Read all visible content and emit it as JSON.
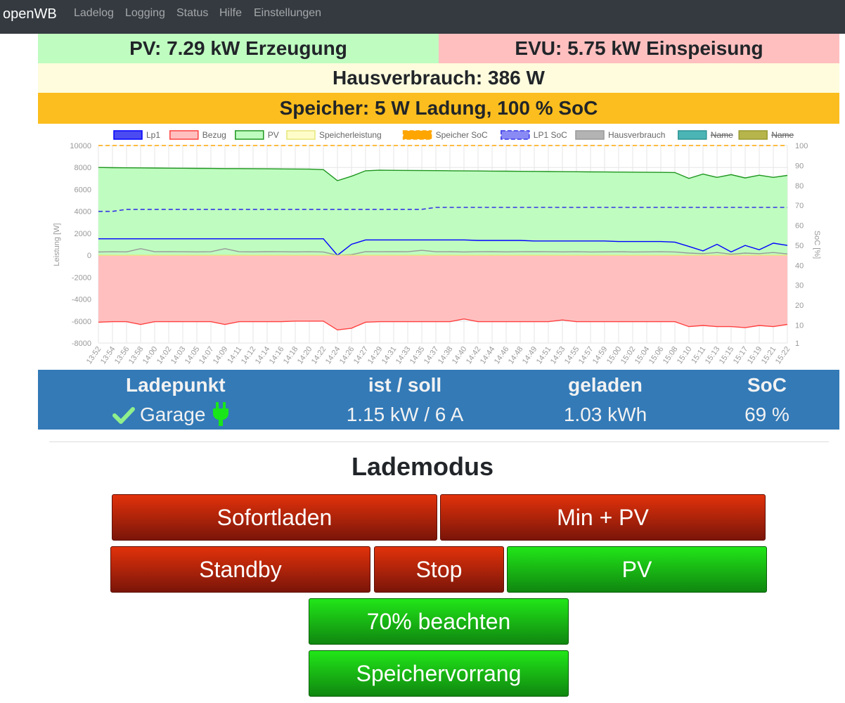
{
  "nav": {
    "brand": "openWB",
    "links": [
      "Ladelog",
      "Logging",
      "Status",
      "Hilfe",
      "Einstellungen"
    ]
  },
  "status": {
    "pv": "PV: 7.29 kW Erzeugung",
    "evu": "EVU: 5.75 kW Einspeisung",
    "haus": "Hausverbrauch: 386 W",
    "speicher": "Speicher: 5 W Ladung, 100 % SoC"
  },
  "colors": {
    "pv": "#bffcc0",
    "evu": "#ffbfbf",
    "haus": "#fefcdd",
    "speicher": "#fcbe1e",
    "ladepunkt_bg": "#337ab7",
    "ok_check": "#8ff08c",
    "plug": "#19e619"
  },
  "ladepunkt": {
    "headers": [
      "Ladepunkt",
      "ist / soll",
      "geladen",
      "SoC"
    ],
    "row": {
      "name": "Garage",
      "ist_soll": "1.15 kW / 6 A",
      "geladen": "1.03 kWh",
      "soc": "69 %"
    },
    "icons": [
      "check-icon",
      "plug-icon"
    ]
  },
  "lademodus": {
    "title": "Lademodus",
    "buttons": {
      "sofortladen": "Sofortladen",
      "minpv": "Min + PV",
      "standby": "Standby",
      "stop": "Stop",
      "pv": "PV",
      "beachten": "70% beachten",
      "speichervorrang": "Speichervorrang"
    },
    "active": [
      "PV",
      "70% beachten",
      "Speichervorrang"
    ]
  },
  "chart_data": {
    "type": "area",
    "legend": [
      {
        "name": "Lp1",
        "stroke": "#0000ff",
        "fill": "#4b4bf2"
      },
      {
        "name": "Bezug",
        "stroke": "#ff4040",
        "fill": "#ffbfbf"
      },
      {
        "name": "PV",
        "stroke": "#1e961e",
        "fill": "#bffcc0"
      },
      {
        "name": "Speicherleistung",
        "stroke": "#e6e67a",
        "fill": "#fefcc8"
      },
      {
        "name": "Speicher SoC",
        "stroke": "#ffa500",
        "fill": "#ffa500",
        "dashed": true
      },
      {
        "name": "LP1 SoC",
        "stroke": "#3535e6",
        "fill": "#8a8af5",
        "dashed": true
      },
      {
        "name": "Hausverbrauch",
        "stroke": "#999999",
        "fill": "#b3b3b3"
      },
      {
        "name": "Name",
        "stroke": "#2f9494",
        "fill": "#4bb5b5",
        "hidden": true
      },
      {
        "name": "Name",
        "stroke": "#999933",
        "fill": "#b5b54b",
        "hidden": true
      }
    ],
    "ylabel_left": "Leistung [W]",
    "ylabel_right": "SoC [%]",
    "y_left_range": [
      -8000,
      10000
    ],
    "y_left_ticks": [
      "10000",
      "8000",
      "6000",
      "4000",
      "2000",
      "0",
      "-2000",
      "-4000",
      "-6000",
      "-8000"
    ],
    "y_right_ticks": [
      "100",
      "90",
      "80",
      "70",
      "60",
      "50",
      "40",
      "30",
      "20",
      "10",
      "1"
    ],
    "x_ticks": [
      "13:52",
      "13:54",
      "13:56",
      "13:58",
      "14:00",
      "14:02",
      "14:03",
      "14:05",
      "14:07",
      "14:09",
      "14:11",
      "14:12",
      "14:14",
      "14:16",
      "14:18",
      "14:20",
      "14:22",
      "14:24",
      "14:26",
      "14:27",
      "14:29",
      "14:31",
      "14:33",
      "14:35",
      "14:37",
      "14:38",
      "14:40",
      "14:42",
      "14:44",
      "14:46",
      "14:48",
      "14:49",
      "14:51",
      "14:53",
      "14:55",
      "14:57",
      "14:59",
      "15:00",
      "15:02",
      "15:04",
      "15:06",
      "15:08",
      "15:10",
      "15:11",
      "15:13",
      "15:15",
      "15:17",
      "15:19",
      "15:21",
      "15:22"
    ],
    "series": [
      {
        "name": "PV",
        "values": [
          8000,
          7980,
          7970,
          7960,
          7950,
          7940,
          7930,
          7920,
          7910,
          7900,
          7900,
          7890,
          7880,
          7870,
          7860,
          7850,
          7800,
          6800,
          7200,
          7700,
          7750,
          7740,
          7730,
          7720,
          7710,
          7700,
          7690,
          7680,
          7670,
          7660,
          7650,
          7640,
          7630,
          7620,
          7610,
          7600,
          7590,
          7580,
          7570,
          7560,
          7550,
          7540,
          7000,
          7400,
          7100,
          7350,
          7050,
          7300,
          7100,
          7280
        ]
      },
      {
        "name": "Bezug",
        "values": [
          -6100,
          -6050,
          -6050,
          -6300,
          -6050,
          -6050,
          -6050,
          -6050,
          -6050,
          -6300,
          -6050,
          -6050,
          -6050,
          -6050,
          -6000,
          -6000,
          -6000,
          -6800,
          -6650,
          -6100,
          -6050,
          -6050,
          -6050,
          -6050,
          -6050,
          -6050,
          -5800,
          -6050,
          -6050,
          -6050,
          -6050,
          -6050,
          -6050,
          -5900,
          -6050,
          -6050,
          -6050,
          -6050,
          -6050,
          -6050,
          -6050,
          -6050,
          -6500,
          -6400,
          -6500,
          -6500,
          -6600,
          -6400,
          -6500,
          -6300
        ]
      },
      {
        "name": "Lp1",
        "values": [
          1500,
          1500,
          1500,
          1500,
          1500,
          1500,
          1500,
          1500,
          1500,
          1500,
          1500,
          1500,
          1500,
          1500,
          1500,
          1500,
          1500,
          0,
          1000,
          1400,
          1400,
          1400,
          1400,
          1400,
          1400,
          1400,
          1400,
          1350,
          1350,
          1350,
          1350,
          1300,
          1300,
          1300,
          1300,
          1300,
          1300,
          1250,
          1250,
          1250,
          1250,
          1200,
          800,
          400,
          1000,
          300,
          900,
          500,
          1100,
          900
        ]
      },
      {
        "name": "Hausverbrauch",
        "values": [
          300,
          320,
          310,
          600,
          320,
          330,
          320,
          310,
          320,
          600,
          320,
          310,
          330,
          320,
          310,
          320,
          300,
          0,
          60,
          330,
          320,
          330,
          320,
          450,
          320,
          330,
          300,
          320,
          330,
          310,
          320,
          330,
          320,
          310,
          320,
          300,
          310,
          320,
          300,
          310,
          320,
          300,
          200,
          150,
          250,
          100,
          200,
          150,
          250,
          120
        ]
      },
      {
        "name": "Speicherleistung",
        "values": [
          0,
          0,
          0,
          0,
          0,
          0,
          0,
          0,
          0,
          0,
          0,
          0,
          0,
          0,
          0,
          0,
          0,
          0,
          0,
          0,
          0,
          0,
          0,
          0,
          0,
          0,
          0,
          0,
          0,
          0,
          0,
          0,
          0,
          0,
          0,
          0,
          0,
          0,
          0,
          0,
          0,
          0,
          0,
          0,
          0,
          0,
          0,
          0,
          0,
          0
        ]
      },
      {
        "name": "LP1 SoC",
        "axis": "right",
        "values": [
          67,
          67,
          68,
          68,
          68,
          68,
          68,
          68,
          68,
          68,
          68,
          68,
          68,
          68,
          68,
          68,
          68,
          68,
          68,
          68,
          68,
          68,
          68,
          68,
          69,
          69,
          69,
          69,
          69,
          69,
          69,
          69,
          69,
          69,
          69,
          69,
          69,
          69,
          69,
          69,
          69,
          69,
          69,
          69,
          69,
          69,
          69,
          69,
          69,
          69
        ]
      },
      {
        "name": "Speicher SoC",
        "axis": "right",
        "values": [
          100,
          100,
          100,
          100,
          100,
          100,
          100,
          100,
          100,
          100,
          100,
          100,
          100,
          100,
          100,
          100,
          100,
          100,
          100,
          100,
          100,
          100,
          100,
          100,
          100,
          100,
          100,
          100,
          100,
          100,
          100,
          100,
          100,
          100,
          100,
          100,
          100,
          100,
          100,
          100,
          100,
          100,
          100,
          100,
          100,
          100,
          100,
          100,
          100,
          100
        ]
      }
    ]
  }
}
